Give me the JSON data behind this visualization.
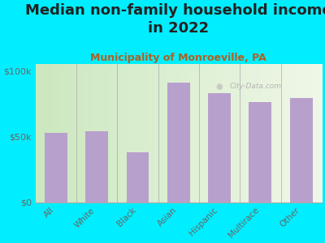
{
  "title": "Median non-family household income\nin 2022",
  "subtitle": "Municipality of Monroeville, PA",
  "categories": [
    "All",
    "White",
    "Black",
    "Asian",
    "Hispanic",
    "Multirace",
    "Other"
  ],
  "values": [
    53000,
    54000,
    38000,
    91000,
    83000,
    76000,
    79000
  ],
  "bar_color": "#b8a0cc",
  "background_outer": "#00eeff",
  "background_chart_left": "#cce8c0",
  "background_chart_right": "#f0f8e8",
  "ytick_labels": [
    "$0",
    "$50k",
    "$100k"
  ],
  "ytick_values": [
    0,
    50000,
    100000
  ],
  "ylim": [
    0,
    105000
  ],
  "title_fontsize": 13,
  "subtitle_fontsize": 9,
  "subtitle_color": "#b06020",
  "watermark": "City-Data.com",
  "tick_label_color": "#666666"
}
